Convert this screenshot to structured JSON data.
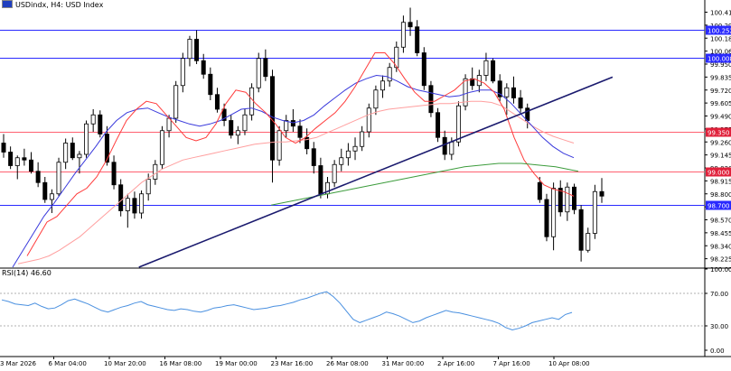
{
  "header": {
    "symbol": "USDindx, H4: ",
    "name": "USD Index"
  },
  "rsi": {
    "label": "RSI(14) 46.60"
  },
  "colors": {
    "bull": "#ffffff",
    "bear": "#000000",
    "wick": "#000000",
    "ema_fast": "#ff3b3b",
    "ema_mid": "#3a3adc",
    "ema_slow": "#ff9f9f",
    "ma_long": "#3c9c3c",
    "trendline": "#1a1a6e",
    "level_blue": "#2a2aff",
    "level_red": "#ff6070",
    "badge_blue": "#2a2aff",
    "badge_red": "#e0203a",
    "rsi_line": "#4a90e0",
    "grid_text": "#000000"
  },
  "chart_data": {
    "type": "candlestick",
    "price_axis_ticks": [
      "100.410",
      "100.295",
      "100.180",
      "100.065",
      "99.950",
      "99.835",
      "99.720",
      "99.605",
      "99.490",
      "99.375",
      "99.260",
      "99.145",
      "99.030",
      "98.915",
      "98.800",
      "98.685",
      "98.570",
      "98.455",
      "98.340",
      "98.225"
    ],
    "time_axis_labels": [
      "3 Mar 2026",
      "6 Mar 04:00",
      "10 Mar 20:00",
      "16 Mar 08:00",
      "19 Mar 00:00",
      "23 Mar 16:00",
      "26 Mar 08:00",
      "31 Mar 00:00",
      "2 Apr 16:00",
      "7 Apr 16:00",
      "10 Apr 08:00"
    ],
    "levels": [
      {
        "label": "100.252",
        "value": 100.252,
        "style": "blue"
      },
      {
        "label": "100.008",
        "value": 100.008,
        "style": "blue"
      },
      {
        "label": "99.350",
        "value": 99.35,
        "style": "red"
      },
      {
        "label": "99.000",
        "value": 99.0,
        "style": "red"
      },
      {
        "label": "98.700",
        "value": 98.7,
        "style": "blue"
      }
    ],
    "price_range": [
      98.15,
      100.47
    ],
    "rsi_axis_ticks": [
      "100.00",
      "70.00",
      "30.00",
      "0.00"
    ],
    "rsi_range": [
      0,
      100
    ],
    "rsi_levels": [
      70,
      30
    ],
    "trendline": {
      "from": [
        0.19,
        98.15
      ],
      "to": [
        0.838,
        99.835
      ]
    },
    "candles": [
      [
        99.25,
        99.33,
        99.12,
        99.17
      ],
      [
        99.17,
        99.22,
        99.02,
        99.05
      ],
      [
        99.05,
        99.14,
        98.93,
        99.12
      ],
      [
        99.12,
        99.2,
        99.05,
        99.1
      ],
      [
        99.1,
        99.17,
        98.98,
        99.0
      ],
      [
        99.0,
        99.08,
        98.86,
        98.9
      ],
      [
        98.9,
        98.95,
        98.72,
        98.75
      ],
      [
        98.75,
        98.84,
        98.63,
        98.8
      ],
      [
        98.8,
        99.12,
        98.78,
        99.08
      ],
      [
        99.08,
        99.29,
        99.02,
        99.25
      ],
      [
        99.25,
        99.3,
        99.1,
        99.12
      ],
      [
        99.12,
        99.18,
        98.98,
        99.15
      ],
      [
        99.15,
        99.45,
        99.12,
        99.42
      ],
      [
        99.42,
        99.55,
        99.35,
        99.5
      ],
      [
        99.5,
        99.54,
        99.3,
        99.33
      ],
      [
        99.33,
        99.4,
        99.05,
        99.08
      ],
      [
        99.08,
        99.14,
        98.84,
        98.88
      ],
      [
        98.88,
        98.93,
        98.6,
        98.65
      ],
      [
        98.65,
        98.8,
        98.5,
        98.76
      ],
      [
        98.76,
        98.82,
        98.58,
        98.63
      ],
      [
        98.63,
        98.83,
        98.58,
        98.8
      ],
      [
        98.8,
        98.98,
        98.74,
        98.93
      ],
      [
        98.93,
        99.1,
        98.88,
        99.06
      ],
      [
        99.06,
        99.4,
        99.02,
        99.36
      ],
      [
        99.36,
        99.5,
        99.3,
        99.47
      ],
      [
        99.47,
        99.8,
        99.43,
        99.76
      ],
      [
        99.76,
        100.05,
        99.7,
        100.0
      ],
      [
        100.0,
        100.2,
        99.93,
        100.17
      ],
      [
        100.17,
        100.25,
        99.95,
        99.98
      ],
      [
        99.98,
        100.04,
        99.82,
        99.86
      ],
      [
        99.86,
        99.92,
        99.63,
        99.68
      ],
      [
        99.68,
        99.74,
        99.52,
        99.55
      ],
      [
        99.55,
        99.6,
        99.4,
        99.45
      ],
      [
        99.45,
        99.5,
        99.29,
        99.32
      ],
      [
        99.32,
        99.4,
        99.24,
        99.36
      ],
      [
        99.36,
        99.55,
        99.32,
        99.5
      ],
      [
        99.5,
        99.78,
        99.45,
        99.74
      ],
      [
        99.74,
        100.05,
        99.7,
        100.0
      ],
      [
        100.0,
        100.08,
        99.8,
        99.84
      ],
      [
        99.84,
        99.9,
        98.9,
        99.1
      ],
      [
        99.1,
        99.4,
        99.05,
        99.36
      ],
      [
        99.36,
        99.5,
        99.3,
        99.45
      ],
      [
        99.45,
        99.55,
        99.35,
        99.4
      ],
      [
        99.4,
        99.46,
        99.25,
        99.3
      ],
      [
        99.3,
        99.38,
        99.15,
        99.2
      ],
      [
        99.2,
        99.26,
        98.98,
        99.05
      ],
      [
        99.05,
        99.12,
        98.76,
        98.8
      ],
      [
        98.8,
        98.95,
        98.76,
        98.9
      ],
      [
        98.9,
        99.1,
        98.86,
        99.06
      ],
      [
        99.06,
        99.2,
        99.0,
        99.12
      ],
      [
        99.12,
        99.25,
        99.05,
        99.18
      ],
      [
        99.18,
        99.3,
        99.1,
        99.22
      ],
      [
        99.22,
        99.4,
        99.18,
        99.35
      ],
      [
        99.35,
        99.6,
        99.3,
        99.56
      ],
      [
        99.56,
        99.76,
        99.5,
        99.72
      ],
      [
        99.72,
        99.85,
        99.65,
        99.8
      ],
      [
        99.8,
        99.96,
        99.75,
        99.92
      ],
      [
        99.92,
        100.15,
        99.88,
        100.1
      ],
      [
        100.1,
        100.38,
        100.05,
        100.32
      ],
      [
        100.32,
        100.45,
        100.2,
        100.28
      ],
      [
        100.28,
        100.34,
        100.02,
        100.05
      ],
      [
        100.05,
        100.1,
        99.72,
        99.76
      ],
      [
        99.76,
        99.8,
        99.48,
        99.52
      ],
      [
        99.52,
        99.56,
        99.26,
        99.3
      ],
      [
        99.3,
        99.36,
        99.1,
        99.15
      ],
      [
        99.15,
        99.3,
        99.1,
        99.26
      ],
      [
        99.26,
        99.62,
        99.22,
        99.58
      ],
      [
        99.58,
        99.86,
        99.54,
        99.82
      ],
      [
        99.82,
        99.92,
        99.72,
        99.76
      ],
      [
        99.76,
        99.9,
        99.7,
        99.85
      ],
      [
        99.85,
        100.05,
        99.8,
        99.98
      ],
      [
        99.98,
        100.0,
        99.78,
        99.8
      ],
      [
        99.8,
        99.86,
        99.62,
        99.66
      ],
      [
        99.66,
        99.78,
        99.5,
        99.74
      ],
      [
        99.74,
        99.84,
        99.6,
        99.65
      ],
      [
        99.65,
        99.72,
        99.52,
        99.56
      ],
      [
        99.56,
        99.6,
        99.38,
        99.45
      ],
      [
        98.9,
        98.95,
        98.72,
        98.75
      ],
      [
        98.75,
        98.8,
        98.38,
        98.42
      ],
      [
        98.42,
        98.9,
        98.3,
        98.85
      ],
      [
        98.85,
        98.92,
        98.6,
        98.64
      ],
      [
        98.64,
        98.9,
        98.56,
        98.86
      ],
      [
        98.86,
        98.89,
        98.62,
        98.66
      ],
      [
        98.66,
        98.7,
        98.2,
        98.3
      ],
      [
        98.3,
        98.5,
        98.28,
        98.45
      ],
      [
        98.45,
        98.88,
        98.4,
        98.82
      ],
      [
        98.82,
        98.94,
        98.72,
        98.78
      ]
    ],
    "ema_fast": [
      98.25,
      98.4,
      98.55,
      98.6,
      98.7,
      98.8,
      98.85,
      98.95,
      99.1,
      99.28,
      99.45,
      99.55,
      99.62,
      99.6,
      99.5,
      99.4,
      99.3,
      99.27,
      99.3,
      99.42,
      99.6,
      99.72,
      99.7,
      99.6,
      99.52,
      99.42,
      99.3,
      99.25,
      99.3,
      99.38,
      99.45,
      99.52,
      99.62,
      99.75,
      99.9,
      100.05,
      100.05,
      99.95,
      99.82,
      99.7,
      99.62,
      99.62,
      99.67,
      99.72,
      99.8,
      99.82,
      99.78,
      99.7,
      99.55,
      99.3,
      99.1,
      98.98,
      98.88,
      98.84,
      98.82,
      98.78
    ],
    "ema_mid": [
      98.15,
      98.3,
      98.45,
      98.6,
      98.72,
      98.85,
      98.98,
      99.1,
      99.22,
      99.35,
      99.45,
      99.52,
      99.55,
      99.56,
      99.52,
      99.48,
      99.45,
      99.42,
      99.4,
      99.42,
      99.45,
      99.5,
      99.55,
      99.56,
      99.53,
      99.48,
      99.45,
      99.43,
      99.45,
      99.5,
      99.58,
      99.65,
      99.72,
      99.78,
      99.82,
      99.85,
      99.84,
      99.8,
      99.75,
      99.72,
      99.7,
      99.68,
      99.66,
      99.67,
      99.7,
      99.72,
      99.72,
      99.68,
      99.6,
      99.5,
      99.4,
      99.3,
      99.22,
      99.16,
      99.12
    ],
    "ema_slow": [
      98.18,
      98.2,
      98.22,
      98.25,
      98.3,
      98.36,
      98.42,
      98.5,
      98.58,
      98.66,
      98.74,
      98.82,
      98.9,
      98.96,
      99.02,
      99.06,
      99.1,
      99.12,
      99.14,
      99.16,
      99.18,
      99.2,
      99.22,
      99.24,
      99.25,
      99.26,
      99.26,
      99.27,
      99.28,
      99.3,
      99.34,
      99.38,
      99.42,
      99.46,
      99.5,
      99.53,
      99.55,
      99.56,
      99.57,
      99.58,
      99.59,
      99.6,
      99.6,
      99.61,
      99.62,
      99.62,
      99.61,
      99.58,
      99.52,
      99.46,
      99.4,
      99.35,
      99.31,
      99.28,
      99.25
    ],
    "ma_long": [
      98.7,
      98.72,
      98.74,
      98.76,
      98.78,
      98.8,
      98.82,
      98.84,
      98.86,
      98.88,
      98.9,
      98.92,
      98.94,
      98.96,
      98.98,
      99.0,
      99.02,
      99.04,
      99.05,
      99.06,
      99.07,
      99.07,
      99.07,
      99.06,
      99.05,
      99.04,
      99.02,
      99.0
    ],
    "rsi_values": [
      62,
      60,
      57,
      56,
      55,
      58,
      54,
      51,
      52,
      56,
      61,
      63,
      60,
      57,
      53,
      49,
      47,
      50,
      53,
      55,
      58,
      60,
      56,
      54,
      52,
      50,
      49,
      51,
      50,
      48,
      47,
      49,
      52,
      53,
      55,
      56,
      54,
      52,
      50,
      51,
      52,
      54,
      55,
      57,
      59,
      62,
      64,
      67,
      70,
      72,
      66,
      58,
      48,
      38,
      34,
      37,
      40,
      43,
      47,
      45,
      42,
      38,
      34,
      36,
      40,
      43,
      46,
      49,
      47,
      46,
      44,
      42,
      40,
      38,
      36,
      33,
      28,
      25,
      27,
      30,
      34,
      36,
      38,
      40,
      38,
      44,
      46.6
    ]
  }
}
